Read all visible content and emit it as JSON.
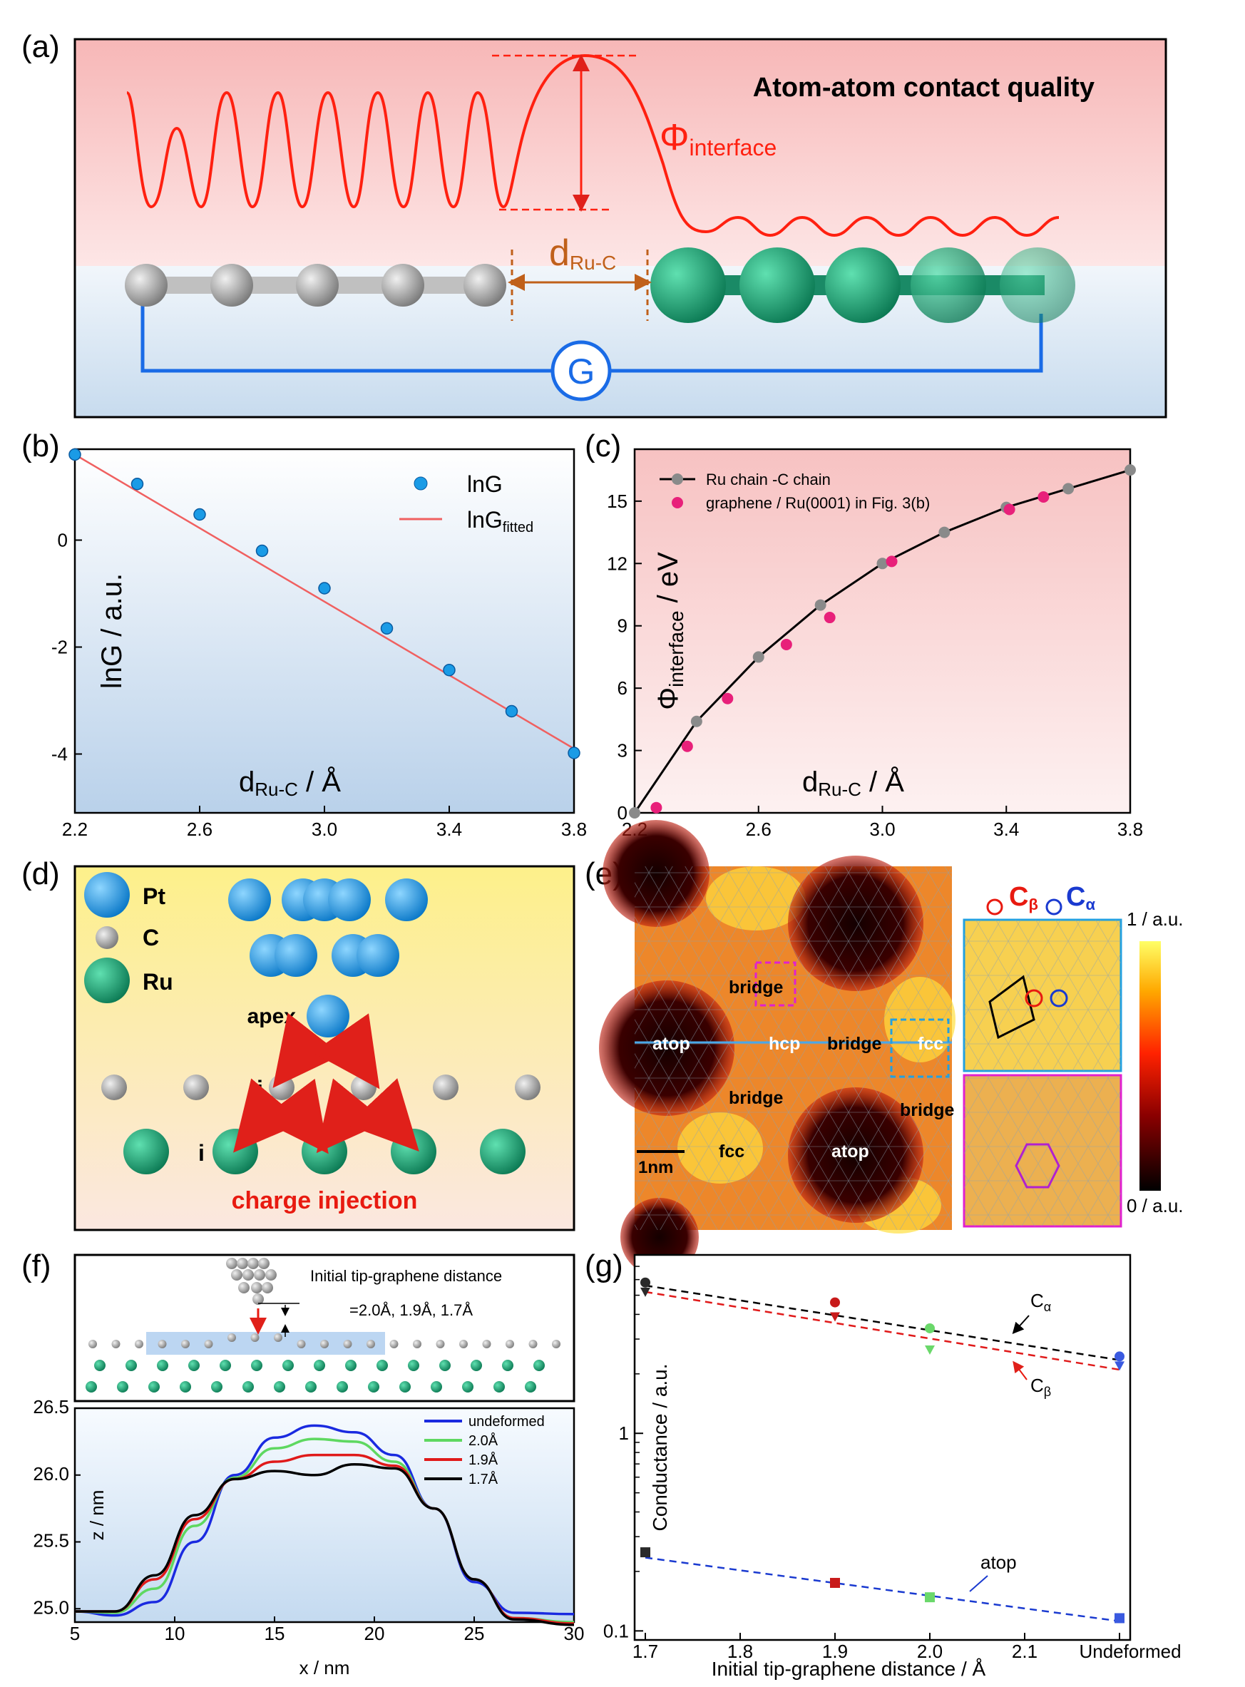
{
  "panel_labels": [
    "(a)",
    "(b)",
    "(c)",
    "(d)",
    "(e)",
    "(f)",
    "(g)"
  ],
  "panel_a": {
    "title": "Atom-atom contact quality",
    "phi_label": "Φ",
    "phi_sub": "interface",
    "d_label": "d",
    "d_sub": "Ru-C",
    "g_label": "G",
    "colors": {
      "curve": "#ff2010",
      "circuit": "#1a6be6",
      "ru": "#1aa57c",
      "c": "#b0b0b0",
      "accent": "#c0601a"
    }
  },
  "panel_d": {
    "legend": [
      "Pt",
      "C",
      "Ru"
    ],
    "apex": "apex",
    "j": "j",
    "i": "i",
    "caption": "charge injection",
    "colors": {
      "pt": "#1a9be6",
      "c": "#a8a8a8",
      "ru": "#16a06e",
      "arrow": "#e81a10"
    }
  },
  "panel_e": {
    "labels": [
      "bridge",
      "atop",
      "hcp",
      "bridge",
      "fcc",
      "bridge",
      "bridge",
      "fcc",
      "atop"
    ],
    "scale": "1nm",
    "c_beta": "C",
    "c_beta_sub": "β",
    "c_alpha": "C",
    "c_alpha_sub": "α",
    "colorbar_max": "1 / a.u.",
    "colorbar_min": "0 / a.u."
  },
  "panel_f": {
    "label_line1": "Initial tip-graphene distance",
    "label_line2": "=2.0Å, 1.9Å, 1.7Å"
  },
  "chart_data": [
    {
      "id": "b",
      "type": "scatter",
      "xlabel": "d",
      "xlabel_sub": "Ru-C",
      "xlabel_unit": " / Å",
      "ylabel": "lnG / a.u.",
      "xlim": [
        2.2,
        3.8
      ],
      "ylim": [
        -5.1,
        1.7
      ],
      "xticks": [
        "2.2",
        "2.6",
        "3.0",
        "3.4",
        "3.8"
      ],
      "yticks": [
        "-4",
        "-2",
        "0"
      ],
      "legend": [
        "lnG",
        "lnG",
        "fitted"
      ],
      "series": [
        {
          "name": "lnG",
          "x": [
            2.2,
            2.4,
            2.6,
            2.8,
            3.0,
            3.2,
            3.4,
            3.6,
            3.8
          ],
          "y": [
            1.6,
            1.05,
            0.48,
            -0.2,
            -0.9,
            -1.65,
            -2.43,
            -3.2,
            -3.98
          ]
        },
        {
          "name": "lnG fitted",
          "x": [
            2.2,
            3.8
          ],
          "y": [
            1.6,
            -3.9
          ]
        }
      ]
    },
    {
      "id": "c",
      "type": "line",
      "xlabel": "d",
      "xlabel_sub": "Ru-C",
      "xlabel_unit": " / Å",
      "ylabel": "Φ",
      "ylabel_sub": "interface",
      "ylabel_unit": " / eV",
      "xlim": [
        2.2,
        3.8
      ],
      "ylim": [
        0,
        17.5
      ],
      "xticks": [
        "2.2",
        "2.6",
        "3.0",
        "3.4",
        "3.8"
      ],
      "yticks": [
        "0",
        "3",
        "6",
        "9",
        "12",
        "15"
      ],
      "legend": [
        "Ru chain -C chain",
        "graphene / Ru(0001) in Fig. 3(b)"
      ],
      "series": [
        {
          "name": "Ru chain -C chain",
          "x": [
            2.2,
            2.4,
            2.6,
            2.8,
            3.0,
            3.2,
            3.4,
            3.6,
            3.8
          ],
          "y": [
            0.0,
            4.4,
            7.5,
            10.0,
            12.0,
            13.5,
            14.7,
            15.6,
            16.5
          ]
        },
        {
          "name": "graphene / Ru(0001) in Fig. 3(b)",
          "x": [
            2.27,
            2.37,
            2.5,
            2.69,
            2.83,
            3.03,
            3.41,
            3.52
          ],
          "y": [
            0.25,
            3.2,
            5.5,
            8.1,
            9.4,
            12.1,
            14.6,
            15.2
          ]
        }
      ]
    },
    {
      "id": "f",
      "type": "line",
      "xlabel": "x / nm",
      "ylabel": "z / nm",
      "xlim": [
        5,
        30
      ],
      "ylim": [
        24.9,
        26.5
      ],
      "xticks": [
        "5",
        "10",
        "15",
        "20",
        "25",
        "30"
      ],
      "yticks": [
        "25.0",
        "25.5",
        "26.0",
        "26.5"
      ],
      "legend": [
        "undeformed",
        "2.0Å",
        "1.9Å",
        "1.7Å"
      ],
      "series": [
        {
          "name": "undeformed",
          "x": [
            5,
            7,
            9,
            11,
            13,
            15,
            17,
            19,
            21,
            23,
            25,
            27,
            30
          ],
          "y": [
            24.98,
            24.95,
            25.05,
            25.5,
            26.0,
            26.28,
            26.37,
            26.32,
            26.15,
            25.75,
            25.2,
            24.97,
            24.96
          ]
        },
        {
          "name": "2.0Å",
          "x": [
            5,
            7,
            9,
            11,
            13,
            15,
            17,
            19,
            21,
            23,
            25,
            27,
            30
          ],
          "y": [
            24.98,
            24.97,
            25.15,
            25.62,
            25.98,
            26.2,
            26.27,
            26.25,
            26.1,
            25.75,
            25.22,
            24.93,
            24.9
          ]
        },
        {
          "name": "1.9Å",
          "x": [
            5,
            7,
            9,
            11,
            13,
            15,
            17,
            19,
            21,
            23,
            25,
            27,
            30
          ],
          "y": [
            24.98,
            24.98,
            25.22,
            25.67,
            25.97,
            26.1,
            26.15,
            26.15,
            26.07,
            25.75,
            25.22,
            24.93,
            24.89
          ]
        },
        {
          "name": "1.7Å",
          "x": [
            5,
            7,
            9,
            11,
            13,
            15,
            17,
            19,
            21,
            23,
            25,
            27,
            30
          ],
          "y": [
            24.98,
            24.98,
            25.25,
            25.7,
            25.97,
            26.03,
            26.0,
            26.08,
            26.05,
            25.75,
            25.22,
            24.92,
            24.88
          ]
        }
      ]
    },
    {
      "id": "g",
      "type": "scatter",
      "xlabel": "Initial tip-graphene distance / Å",
      "ylabel": "Conductance  / a.u.",
      "yscale": "log",
      "xlim": [
        1.7,
        2.2
      ],
      "ylim": [
        0.09,
        8
      ],
      "xticks": [
        "1.7",
        "1.8",
        "1.9",
        "2.0",
        "2.1",
        "Undeformed"
      ],
      "yticks": [
        "0.1",
        "1"
      ],
      "annotations": [
        "C",
        "α",
        "C",
        "β",
        "atop"
      ],
      "series": [
        {
          "name": "Cα",
          "x": [
            1.7,
            1.9,
            2.0,
            2.2
          ],
          "y": [
            5.8,
            4.6,
            3.4,
            2.45
          ],
          "fit": [
            5.6,
            2.35
          ]
        },
        {
          "name": "Cβ",
          "x": [
            1.7,
            1.9,
            2.0,
            2.2
          ],
          "y": [
            5.2,
            3.9,
            2.65,
            2.2
          ],
          "fit": [
            5.2,
            2.1
          ]
        },
        {
          "name": "atop",
          "x": [
            1.7,
            1.9,
            2.0,
            2.2
          ],
          "y": [
            0.25,
            0.175,
            0.148,
            0.116
          ],
          "fit": [
            0.235,
            0.112
          ]
        }
      ]
    }
  ]
}
